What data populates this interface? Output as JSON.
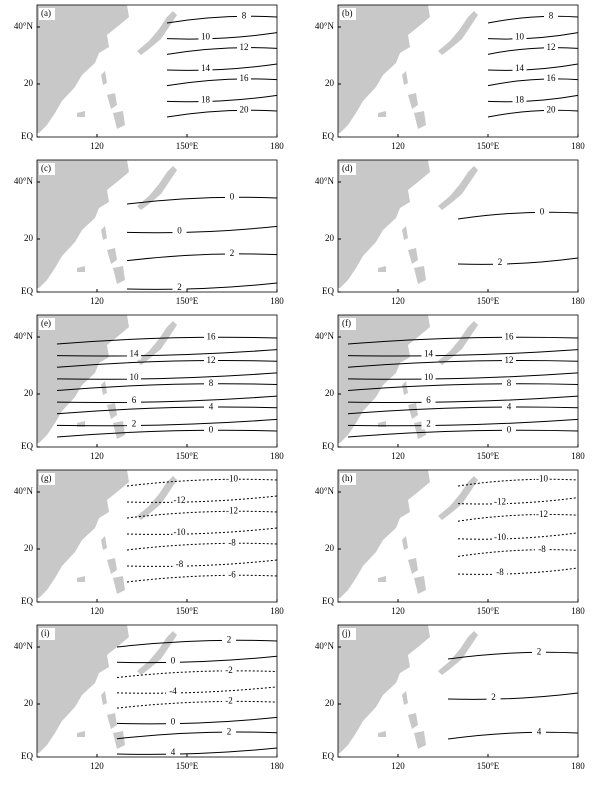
{
  "axes": {
    "y_labels": [
      "40°N",
      "20",
      "EQ"
    ],
    "x_labels": [
      "120",
      "150°E",
      "180"
    ]
  },
  "panels": [
    {
      "label": "(a)",
      "contour_labels": [
        "8",
        "10",
        "12",
        "14",
        "16",
        "18",
        "20"
      ]
    },
    {
      "label": "(b)",
      "contour_labels": [
        "8",
        "10",
        "12",
        "14",
        "16",
        "18",
        "20"
      ]
    },
    {
      "label": "(c)",
      "contour_labels": [
        "0",
        "0",
        "2",
        "2"
      ]
    },
    {
      "label": "(d)",
      "contour_labels": [
        "0",
        "2"
      ]
    },
    {
      "label": "(e)",
      "contour_labels": [
        "16",
        "14",
        "12",
        "10",
        "8",
        "6",
        "4",
        "2",
        "0"
      ]
    },
    {
      "label": "(f)",
      "contour_labels": [
        "16",
        "14",
        "12",
        "10",
        "8",
        "6",
        "4",
        "2",
        "0"
      ]
    },
    {
      "label": "(g)",
      "contour_labels": [
        "-10",
        "-12",
        "-12",
        "-10",
        "-8",
        "-8",
        "-6"
      ]
    },
    {
      "label": "(h)",
      "contour_labels": [
        "-10",
        "-12",
        "-12",
        "-10",
        "-8",
        "-8"
      ]
    },
    {
      "label": "(i)",
      "contour_labels": [
        "2",
        "0",
        "-2",
        "-4",
        "-2",
        "0",
        "2",
        "4"
      ]
    },
    {
      "label": "(j)",
      "contour_labels": [
        "2",
        "2",
        "4"
      ]
    }
  ]
}
